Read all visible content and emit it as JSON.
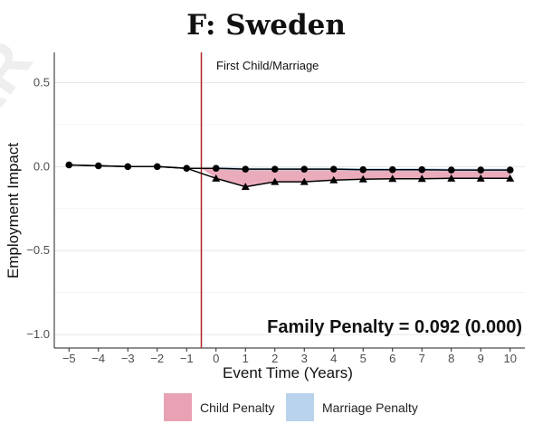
{
  "chart_data": {
    "type": "line",
    "title": "F: Sweden",
    "xlabel": "Event Time (Years)",
    "ylabel": "Employment Impact",
    "x": [
      -5,
      -4,
      -3,
      -2,
      -1,
      0,
      1,
      2,
      3,
      4,
      5,
      6,
      7,
      8,
      9,
      10
    ],
    "x_tick_labels": [
      "−5",
      "−4",
      "−3",
      "−2",
      "−1",
      "0",
      "1",
      "2",
      "3",
      "4",
      "5",
      "6",
      "7",
      "8",
      "9",
      "10"
    ],
    "y_ticks": [
      0.5,
      0.0,
      -0.5,
      -1.0
    ],
    "y_tick_labels": [
      "0.5",
      "0.0",
      "−0.5",
      "−1.0"
    ],
    "xlim": [
      -5.5,
      10.5
    ],
    "ylim": [
      -1.08,
      0.68
    ],
    "grid": true,
    "series": [
      {
        "marker": "circle",
        "values": [
          0.01,
          0.005,
          0.0,
          0.0,
          -0.01,
          -0.01,
          -0.015,
          -0.015,
          -0.015,
          -0.015,
          -0.018,
          -0.018,
          -0.018,
          -0.02,
          -0.02,
          -0.02
        ]
      },
      {
        "marker": "triangle",
        "values": [
          0.01,
          0.005,
          0.0,
          0.0,
          -0.01,
          -0.07,
          -0.12,
          -0.09,
          -0.09,
          -0.08,
          -0.075,
          -0.072,
          -0.072,
          -0.07,
          -0.07,
          -0.07
        ]
      }
    ],
    "event_line": {
      "x": -0.5,
      "label": "First Child/Marriage",
      "color": "#b22222"
    },
    "shading": [
      {
        "name": "Child Penalty",
        "color": "#e8a2b4"
      },
      {
        "name": "Marriage Penalty",
        "color": "#b9d3ec"
      }
    ],
    "annotation": "Family Penalty = 0.092 (0.000)",
    "legend": {
      "position": "bottom"
    }
  }
}
